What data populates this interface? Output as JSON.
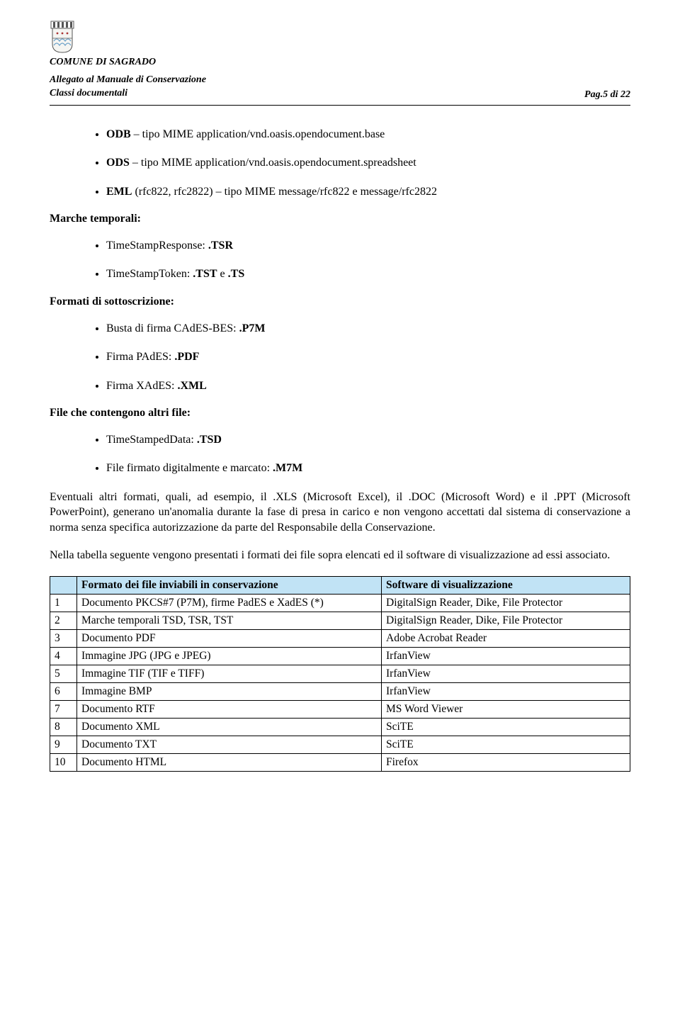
{
  "header": {
    "org_name": "COMUNE DI SAGRADO",
    "subtitle_line1": "Allegato al Manuale di Conservazione",
    "subtitle_line2": "Classi documentali",
    "page_label": "Pag.5 di 22"
  },
  "bullets_top": [
    "ODB – tipo MIME application/vnd.oasis.opendocument.base",
    "ODS – tipo MIME application/vnd.oasis.opendocument.spreadsheet",
    "EML (rfc822, rfc2822) – tipo MIME message/rfc822 e message/rfc2822"
  ],
  "sections": {
    "marche_temporali": {
      "heading": "Marche temporali:",
      "items": [
        "TimeStampResponse: .TSR",
        "TimeStampToken: .TST e .TS"
      ]
    },
    "formati_sottoscrizione": {
      "heading": "Formati di sottoscrizione:",
      "items": [
        "Busta di firma CAdES-BES: .P7M",
        "Firma PAdES: .PDF",
        "Firma XAdES: .XML"
      ]
    },
    "file_contengono": {
      "heading": "File che contengono altri file:",
      "items": [
        "TimeStampedData: .TSD",
        "File firmato digitalmente e marcato: .M7M"
      ]
    }
  },
  "paragraphs": {
    "p1": "Eventuali altri formati, quali, ad esempio, il .XLS (Microsoft Excel), il .DOC (Microsoft Word) e il .PPT (Microsoft PowerPoint), generano un'anomalia durante la fase di presa in carico e non vengono accettati dal sistema di conservazione a norma senza specifica autorizzazione da parte del Responsabile della Conservazione.",
    "p2": "Nella tabella seguente vengono presentati i formati dei file sopra elencati ed il software di visualizzazione ad essi associato."
  },
  "table": {
    "header_bg": "#c1e3f5",
    "columns": [
      "",
      "Formato dei file inviabili in conservazione",
      "Software di visualizzazione"
    ],
    "rows": [
      [
        "1",
        "Documento PKCS#7 (P7M), firme PadES e XadES (*)",
        "DigitalSign Reader, Dike, File Protector"
      ],
      [
        "2",
        "Marche temporali TSD, TSR, TST",
        "DigitalSign Reader, Dike, File Protector"
      ],
      [
        "3",
        "Documento PDF",
        "Adobe Acrobat Reader"
      ],
      [
        "4",
        "Immagine JPG (JPG e JPEG)",
        "IrfanView"
      ],
      [
        "5",
        "Immagine TIF (TIF e TIFF)",
        "IrfanView"
      ],
      [
        "6",
        "Immagine BMP",
        "IrfanView"
      ],
      [
        "7",
        "Documento RTF",
        "MS Word Viewer"
      ],
      [
        "8",
        "Documento XML",
        "SciTE"
      ],
      [
        "9",
        "Documento TXT",
        "SciTE"
      ],
      [
        "10",
        "Documento HTML",
        "Firefox"
      ]
    ]
  }
}
